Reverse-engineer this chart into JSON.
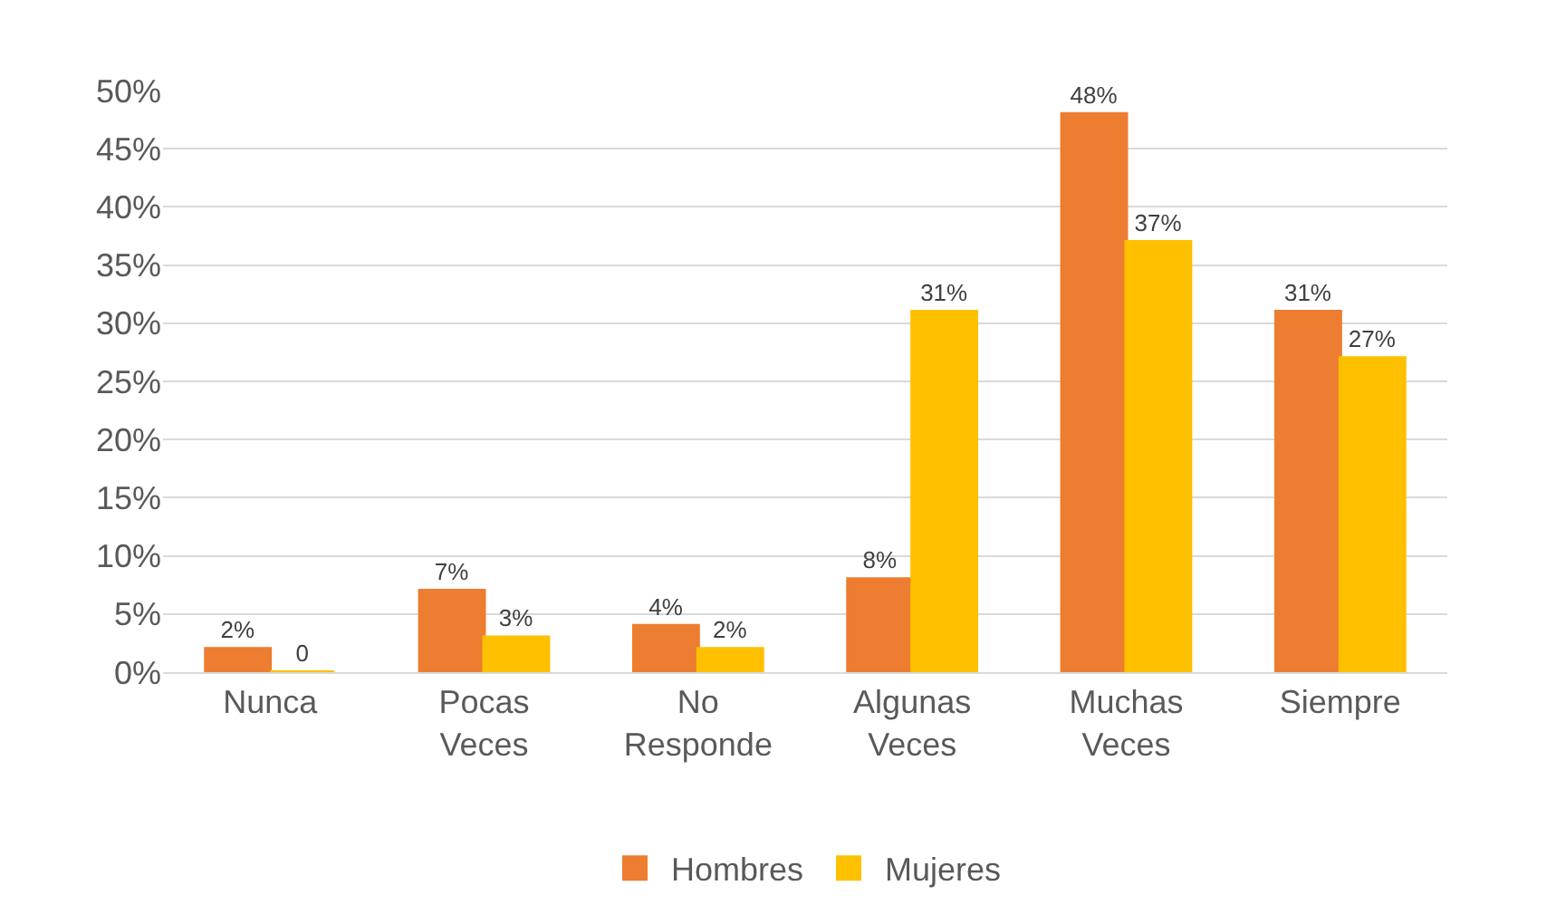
{
  "chart_data": {
    "type": "bar",
    "categories": [
      "Nunca",
      "Pocas Veces",
      "No Responde",
      "Algunas Veces",
      "Muchas Veces",
      "Siempre"
    ],
    "series": [
      {
        "name": "Hombres",
        "color": "#ed7d31",
        "values": [
          2,
          7,
          4,
          8,
          48,
          31
        ],
        "value_labels": [
          "2%",
          "7%",
          "4%",
          "8%",
          "48%",
          "31%"
        ]
      },
      {
        "name": "Mujeres",
        "color": "#ffc000",
        "values": [
          0,
          3,
          2,
          31,
          37,
          27
        ],
        "value_labels": [
          "0",
          "3%",
          "2%",
          "31%",
          "37%",
          "27%"
        ]
      }
    ],
    "ylim": [
      0,
      50
    ],
    "yticks": [
      {
        "value": 0,
        "label": "0%"
      },
      {
        "value": 5,
        "label": "5%"
      },
      {
        "value": 10,
        "label": "10%"
      },
      {
        "value": 15,
        "label": "15%"
      },
      {
        "value": 20,
        "label": "20%"
      },
      {
        "value": 25,
        "label": "25%"
      },
      {
        "value": 30,
        "label": "30%"
      },
      {
        "value": 35,
        "label": "35%"
      },
      {
        "value": 40,
        "label": "40%"
      },
      {
        "value": 45,
        "label": "45%"
      },
      {
        "value": 50,
        "label": "50%"
      }
    ],
    "grid": "y",
    "legend": "bottom"
  }
}
